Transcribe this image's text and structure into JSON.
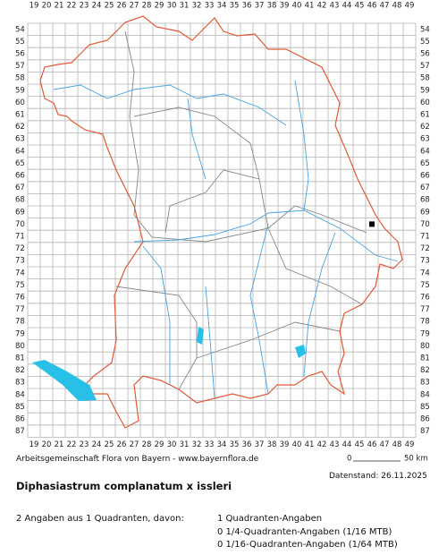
{
  "map": {
    "columns": [
      19,
      20,
      21,
      22,
      23,
      24,
      25,
      26,
      27,
      28,
      29,
      30,
      31,
      32,
      33,
      34,
      35,
      36,
      37,
      38,
      39,
      40,
      41,
      42,
      43,
      44,
      45,
      46,
      47,
      48,
      49
    ],
    "rows": [
      54,
      55,
      56,
      57,
      58,
      59,
      60,
      61,
      62,
      63,
      64,
      65,
      66,
      67,
      68,
      69,
      70,
      71,
      72,
      73,
      74,
      75,
      76,
      77,
      78,
      79,
      80,
      81,
      82,
      83,
      84,
      85,
      86,
      87
    ],
    "occurrences": [
      {
        "col": 46,
        "row": 70
      }
    ],
    "scale_start": "0",
    "scale_end": "50 km"
  },
  "footer": {
    "credit": "Arbeitsgemeinschaft Flora von Bayern - www.bayernflora.de",
    "date": "Datenstand: 26.11.2025",
    "species": "Diphasiastrum complanatum x issleri",
    "summary": "2 Angaben aus 1 Quadranten, davon:",
    "counts": [
      "1 Quadranten-Angaben",
      "0 1/4-Quadranten-Angaben (1/16 MTB)",
      "0 1/16-Quadranten-Angaben (1/64 MTB)"
    ]
  }
}
